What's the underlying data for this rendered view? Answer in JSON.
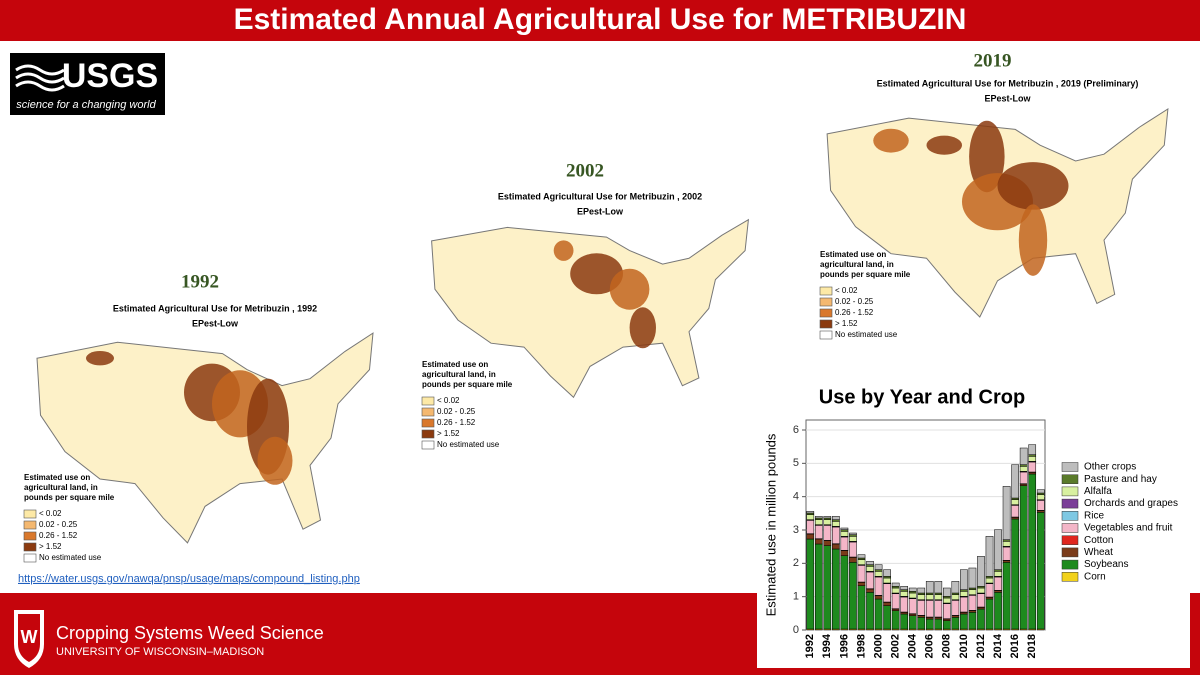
{
  "header": {
    "title": "Estimated Annual Agricultural Use for METRIBUZIN"
  },
  "logo": {
    "name": "USGS",
    "tagline": "science for a changing world"
  },
  "maps": [
    {
      "year": "1992",
      "title": "Estimated Agricultural Use for Metribuzin , 1992",
      "subtitle": "EPest-Low"
    },
    {
      "year": "2002",
      "title": "Estimated Agricultural Use for Metribuzin , 2002",
      "subtitle": "EPest-Low"
    },
    {
      "year": "2019",
      "title": "Estimated Agricultural Use for Metribuzin , 2019 (Preliminary)",
      "subtitle": "EPest-Low"
    }
  ],
  "map_legend": {
    "title_lines": [
      "Estimated use on",
      "agricultural land, in",
      "pounds per square mile"
    ],
    "items": [
      "< 0.02",
      "0.02 - 0.25",
      "0.26 - 1.52",
      "> 1.52",
      "No estimated use"
    ]
  },
  "url": "https://water.usgs.gov/nawqa/pnsp/usage/maps/compound_listing.php",
  "footer": {
    "title": "Cropping Systems Weed Science",
    "subtitle": "UNIVERSITY OF WISCONSIN–MADISON"
  },
  "chart_data": {
    "type": "stacked_bar",
    "title": "Use by Year and Crop",
    "y_label": "Estimated use in million pounds",
    "categories": [
      "1992",
      null,
      "1994",
      null,
      "1996",
      null,
      "1998",
      null,
      "2000",
      null,
      "2002",
      null,
      "2004",
      null,
      "2006",
      null,
      "2008",
      null,
      "2010",
      null,
      "2012",
      null,
      "2014",
      null,
      "2016",
      null,
      "2018",
      null
    ],
    "ylim": [
      0,
      6.3
    ],
    "yticks": [
      0,
      1,
      2,
      3,
      4,
      5,
      6
    ],
    "grid": true,
    "legend": "right",
    "series": [
      {
        "name": "Corn",
        "color": "#f2d21b",
        "values": [
          0.03,
          0.03,
          0.03,
          0.03,
          0.03,
          0.03,
          0.03,
          0.03,
          0.03,
          0.03,
          0.03,
          0.03,
          0.03,
          0.03,
          0.03,
          0.03,
          0.03,
          0.03,
          0.03,
          0.03,
          0.03,
          0.03,
          0.03,
          0.03,
          0.03,
          0.03,
          0.03,
          0.03
        ]
      },
      {
        "name": "Soybeans",
        "color": "#1e8a1e",
        "values": [
          2.7,
          2.55,
          2.5,
          2.4,
          2.2,
          2.0,
          1.3,
          1.1,
          0.9,
          0.7,
          0.55,
          0.45,
          0.4,
          0.35,
          0.3,
          0.3,
          0.25,
          0.35,
          0.45,
          0.5,
          0.6,
          0.9,
          1.1,
          2.0,
          3.3,
          4.3,
          4.65,
          3.5
        ]
      },
      {
        "name": "Wheat",
        "color": "#7a3b1a",
        "values": [
          0.15,
          0.15,
          0.15,
          0.15,
          0.15,
          0.15,
          0.1,
          0.1,
          0.1,
          0.1,
          0.05,
          0.05,
          0.05,
          0.05,
          0.05,
          0.05,
          0.05,
          0.05,
          0.05,
          0.05,
          0.05,
          0.05,
          0.05,
          0.05,
          0.05,
          0.05,
          0.05,
          0.05
        ]
      },
      {
        "name": "Cotton",
        "color": "#e0261f",
        "values": [
          0.01,
          0.01,
          0.01,
          0.01,
          0.01,
          0.01,
          0.01,
          0.01,
          0.01,
          0.01,
          0.01,
          0.01,
          0.01,
          0.01,
          0.01,
          0.01,
          0.01,
          0.01,
          0.01,
          0.01,
          0.01,
          0.01,
          0.01,
          0.01,
          0.01,
          0.01,
          0.01,
          0.01
        ]
      },
      {
        "name": "Vegetables and fruit",
        "color": "#f4b6c8",
        "values": [
          0.4,
          0.4,
          0.45,
          0.5,
          0.4,
          0.45,
          0.5,
          0.5,
          0.55,
          0.55,
          0.45,
          0.45,
          0.45,
          0.45,
          0.5,
          0.5,
          0.45,
          0.45,
          0.45,
          0.45,
          0.4,
          0.4,
          0.4,
          0.4,
          0.35,
          0.35,
          0.3,
          0.3
        ]
      },
      {
        "name": "Rice",
        "color": "#7ec8e3",
        "values": [
          0.01,
          0.01,
          0.01,
          0.01,
          0.01,
          0.01,
          0.01,
          0.01,
          0.01,
          0.01,
          0.01,
          0.01,
          0.01,
          0.01,
          0.01,
          0.01,
          0.01,
          0.01,
          0.01,
          0.01,
          0.01,
          0.01,
          0.01,
          0.01,
          0.01,
          0.01,
          0.01,
          0.01
        ]
      },
      {
        "name": "Orchards and grapes",
        "color": "#7b3f98",
        "values": [
          0.01,
          0.01,
          0.01,
          0.01,
          0.01,
          0.01,
          0.01,
          0.01,
          0.01,
          0.01,
          0.01,
          0.01,
          0.01,
          0.01,
          0.01,
          0.01,
          0.01,
          0.01,
          0.01,
          0.01,
          0.01,
          0.01,
          0.01,
          0.01,
          0.01,
          0.01,
          0.01,
          0.01
        ]
      },
      {
        "name": "Alfalfa",
        "color": "#d8f0a0",
        "values": [
          0.15,
          0.15,
          0.15,
          0.15,
          0.15,
          0.15,
          0.15,
          0.15,
          0.15,
          0.15,
          0.15,
          0.15,
          0.15,
          0.15,
          0.15,
          0.15,
          0.15,
          0.15,
          0.15,
          0.15,
          0.15,
          0.15,
          0.15,
          0.15,
          0.15,
          0.15,
          0.15,
          0.15
        ]
      },
      {
        "name": "Pasture and hay",
        "color": "#5a7a2a",
        "values": [
          0.05,
          0.05,
          0.05,
          0.05,
          0.05,
          0.05,
          0.05,
          0.05,
          0.05,
          0.05,
          0.05,
          0.05,
          0.05,
          0.05,
          0.05,
          0.05,
          0.05,
          0.05,
          0.05,
          0.05,
          0.05,
          0.05,
          0.05,
          0.05,
          0.05,
          0.05,
          0.05,
          0.05
        ]
      },
      {
        "name": "Other crops",
        "color": "#bdbdbd",
        "values": [
          0.05,
          0.05,
          0.05,
          0.1,
          0.05,
          0.05,
          0.1,
          0.1,
          0.15,
          0.2,
          0.1,
          0.1,
          0.1,
          0.15,
          0.35,
          0.35,
          0.25,
          0.35,
          0.6,
          0.6,
          0.9,
          1.2,
          1.2,
          1.6,
          1.0,
          0.5,
          0.3,
          0.1
        ]
      }
    ]
  }
}
